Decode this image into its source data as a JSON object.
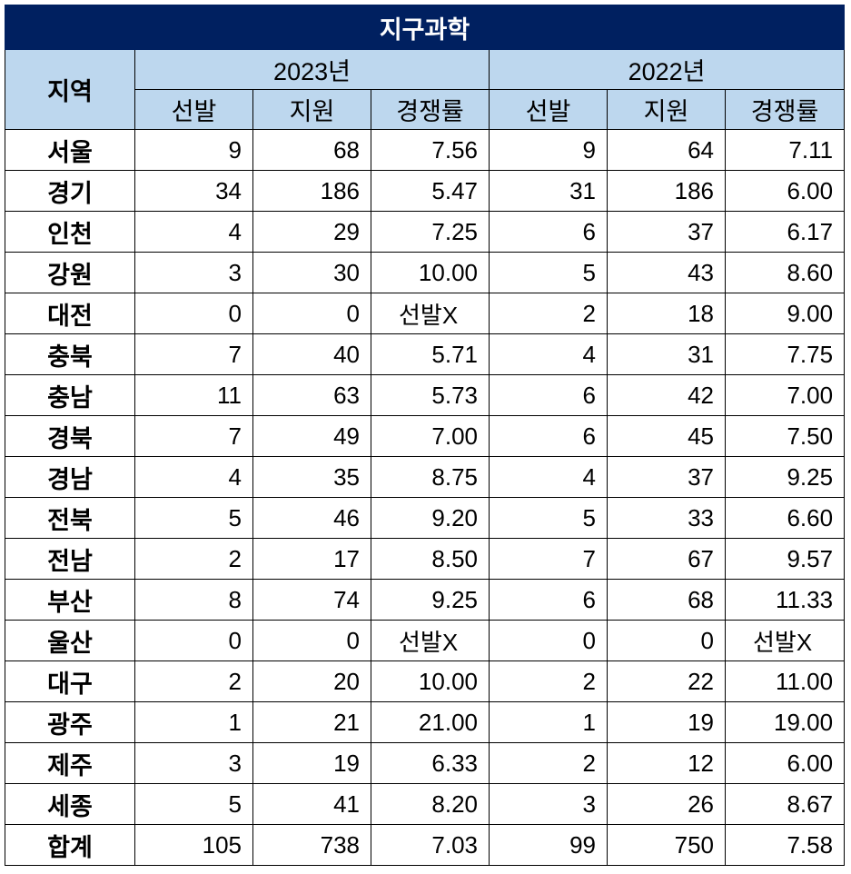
{
  "title": "지구과학",
  "headers": {
    "region": "지역",
    "years": [
      "2023년",
      "2022년"
    ],
    "sub": [
      "선발",
      "지원",
      "경쟁률"
    ]
  },
  "rows": [
    {
      "region": "서울",
      "y2023": [
        "9",
        "68",
        "7.56"
      ],
      "y2022": [
        "9",
        "64",
        "7.11"
      ]
    },
    {
      "region": "경기",
      "y2023": [
        "34",
        "186",
        "5.47"
      ],
      "y2022": [
        "31",
        "186",
        "6.00"
      ]
    },
    {
      "region": "인천",
      "y2023": [
        "4",
        "29",
        "7.25"
      ],
      "y2022": [
        "6",
        "37",
        "6.17"
      ]
    },
    {
      "region": "강원",
      "y2023": [
        "3",
        "30",
        "10.00"
      ],
      "y2022": [
        "5",
        "43",
        "8.60"
      ]
    },
    {
      "region": "대전",
      "y2023": [
        "0",
        "0",
        "선발X"
      ],
      "y2022": [
        "2",
        "18",
        "9.00"
      ]
    },
    {
      "region": "충북",
      "y2023": [
        "7",
        "40",
        "5.71"
      ],
      "y2022": [
        "4",
        "31",
        "7.75"
      ]
    },
    {
      "region": "충남",
      "y2023": [
        "11",
        "63",
        "5.73"
      ],
      "y2022": [
        "6",
        "42",
        "7.00"
      ]
    },
    {
      "region": "경북",
      "y2023": [
        "7",
        "49",
        "7.00"
      ],
      "y2022": [
        "6",
        "45",
        "7.50"
      ]
    },
    {
      "region": "경남",
      "y2023": [
        "4",
        "35",
        "8.75"
      ],
      "y2022": [
        "4",
        "37",
        "9.25"
      ]
    },
    {
      "region": "전북",
      "y2023": [
        "5",
        "46",
        "9.20"
      ],
      "y2022": [
        "5",
        "33",
        "6.60"
      ]
    },
    {
      "region": "전남",
      "y2023": [
        "2",
        "17",
        "8.50"
      ],
      "y2022": [
        "7",
        "67",
        "9.57"
      ]
    },
    {
      "region": "부산",
      "y2023": [
        "8",
        "74",
        "9.25"
      ],
      "y2022": [
        "6",
        "68",
        "11.33"
      ]
    },
    {
      "region": "울산",
      "y2023": [
        "0",
        "0",
        "선발X"
      ],
      "y2022": [
        "0",
        "0",
        "선발X"
      ]
    },
    {
      "region": "대구",
      "y2023": [
        "2",
        "20",
        "10.00"
      ],
      "y2022": [
        "2",
        "22",
        "11.00"
      ]
    },
    {
      "region": "광주",
      "y2023": [
        "1",
        "21",
        "21.00"
      ],
      "y2022": [
        "1",
        "19",
        "19.00"
      ]
    },
    {
      "region": "제주",
      "y2023": [
        "3",
        "19",
        "6.33"
      ],
      "y2022": [
        "2",
        "12",
        "6.00"
      ]
    },
    {
      "region": "세종",
      "y2023": [
        "5",
        "41",
        "8.20"
      ],
      "y2022": [
        "3",
        "26",
        "8.67"
      ]
    },
    {
      "region": "합계",
      "y2023": [
        "105",
        "738",
        "7.03"
      ],
      "y2022": [
        "99",
        "750",
        "7.58"
      ]
    }
  ]
}
